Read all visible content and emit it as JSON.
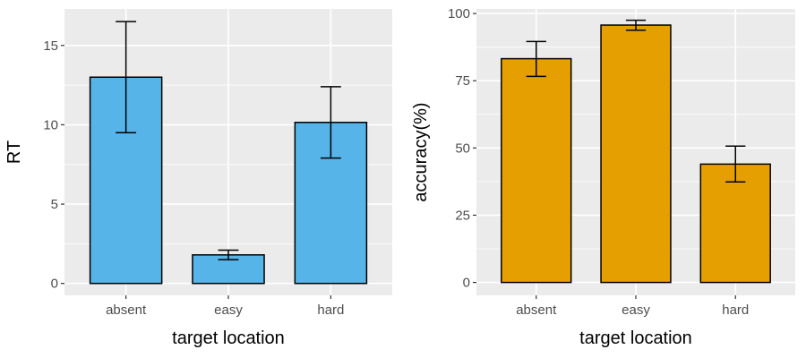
{
  "chart_data": [
    {
      "type": "bar",
      "categories": [
        "absent",
        "easy",
        "hard"
      ],
      "values": [
        13.0,
        1.8,
        10.15
      ],
      "error_low": [
        9.5,
        1.5,
        7.9
      ],
      "error_high": [
        16.5,
        2.1,
        12.4
      ],
      "xlabel": "target location",
      "ylabel": "RT",
      "ylim": [
        -0.75,
        17.3
      ],
      "yticks": [
        0,
        5,
        10,
        15
      ],
      "bar_color": "#56B4E9",
      "grid": true
    },
    {
      "type": "bar",
      "categories": [
        "absent",
        "easy",
        "hard"
      ],
      "values": [
        83.2,
        95.7,
        44.0
      ],
      "error_low": [
        76.6,
        93.8,
        37.4
      ],
      "error_high": [
        89.6,
        97.5,
        50.7
      ],
      "xlabel": "target location",
      "ylabel": "accuracy(%)",
      "ylim": [
        -4.8,
        101.7
      ],
      "yticks": [
        0,
        25,
        50,
        75,
        100
      ],
      "bar_color": "#E69F00",
      "grid": true
    }
  ],
  "style": {
    "panel_background": "#EBEBEB",
    "grid_color": "#FFFFFF",
    "tick_text_color": "#4D4D4D",
    "tick_mark_color": "#333333",
    "bar_outline": "#000000"
  }
}
